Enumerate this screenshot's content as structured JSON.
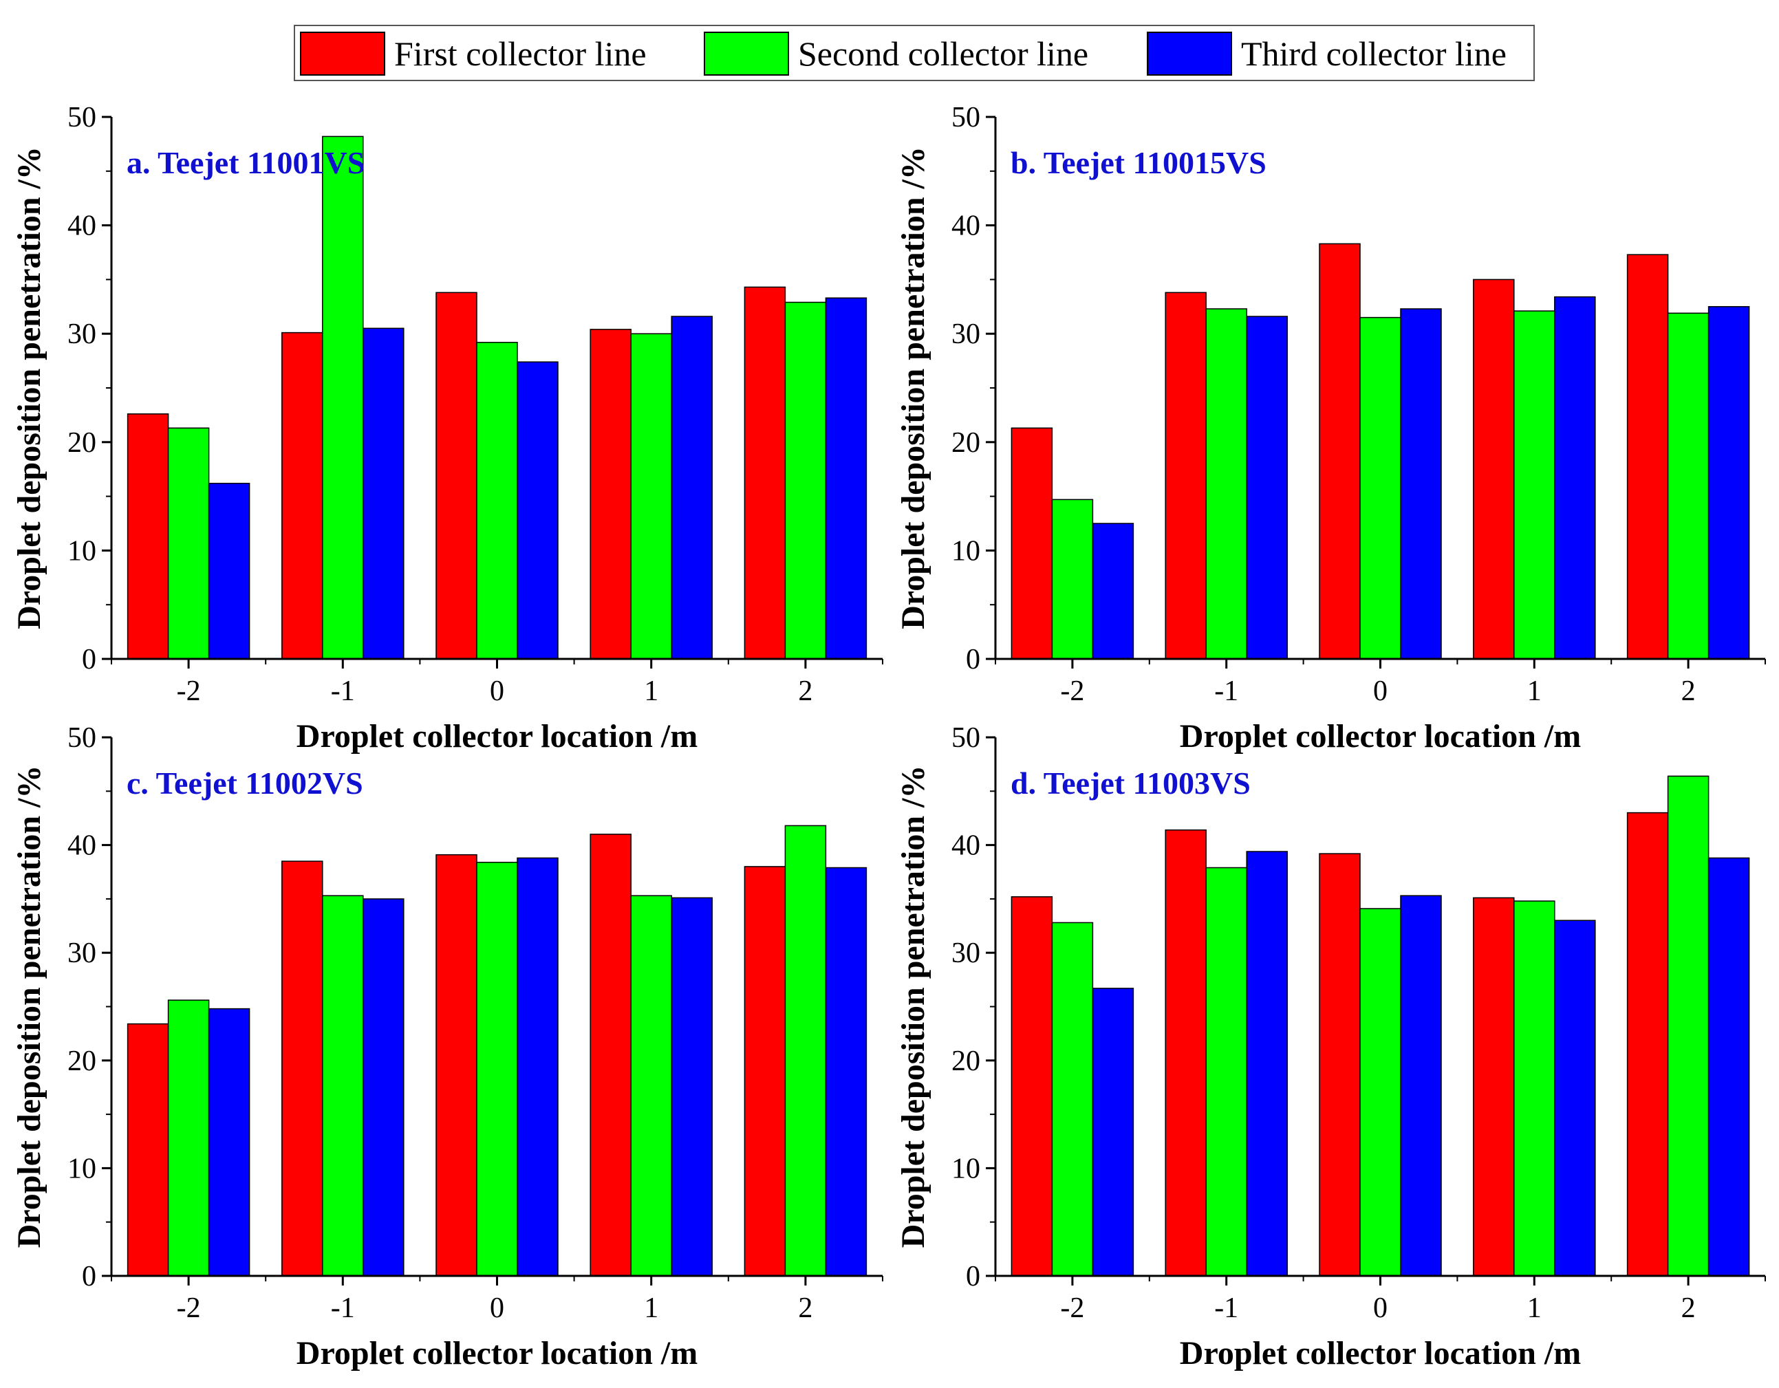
{
  "legend": {
    "items": [
      {
        "label": "First collector line",
        "color": "#ff0000"
      },
      {
        "label": "Second collector line",
        "color": "#00ff00"
      },
      {
        "label": "Third collector line",
        "color": "#0000ff"
      }
    ]
  },
  "chart_data": [
    {
      "type": "bar",
      "title": "a. Teejet 11001VS",
      "xlabel": "Droplet collector location /m",
      "ylabel": "Droplet deposition penetration /%",
      "categories": [
        "-2",
        "-1",
        "0",
        "1",
        "2"
      ],
      "ylim": [
        0,
        50
      ],
      "yticks": [
        "0",
        "10",
        "20",
        "30",
        "40",
        "50"
      ],
      "series": [
        {
          "name": "First collector line",
          "values": [
            22.6,
            30.1,
            33.8,
            30.4,
            34.3
          ]
        },
        {
          "name": "Second collector line",
          "values": [
            21.3,
            48.2,
            29.2,
            30.0,
            32.9
          ]
        },
        {
          "name": "Third collector line",
          "values": [
            16.2,
            30.5,
            27.4,
            31.6,
            33.3
          ]
        }
      ]
    },
    {
      "type": "bar",
      "title": "b. Teejet 110015VS",
      "xlabel": "Droplet collector location /m",
      "ylabel": "Droplet deposition penetration /%",
      "categories": [
        "-2",
        "-1",
        "0",
        "1",
        "2"
      ],
      "ylim": [
        0,
        50
      ],
      "yticks": [
        "0",
        "10",
        "20",
        "30",
        "40",
        "50"
      ],
      "series": [
        {
          "name": "First collector line",
          "values": [
            21.3,
            33.8,
            38.3,
            35.0,
            37.3
          ]
        },
        {
          "name": "Second collector line",
          "values": [
            14.7,
            32.3,
            31.5,
            32.1,
            31.9
          ]
        },
        {
          "name": "Third collector line",
          "values": [
            12.5,
            31.6,
            32.3,
            33.4,
            32.5
          ]
        }
      ]
    },
    {
      "type": "bar",
      "title": "c. Teejet 11002VS",
      "xlabel": "Droplet collector location /m",
      "ylabel": "Droplet deposition penetration /%",
      "categories": [
        "-2",
        "-1",
        "0",
        "1",
        "2"
      ],
      "ylim": [
        0,
        50
      ],
      "yticks": [
        "0",
        "10",
        "20",
        "30",
        "40",
        "50"
      ],
      "series": [
        {
          "name": "First collector line",
          "values": [
            23.4,
            38.5,
            39.1,
            41.0,
            38.0
          ]
        },
        {
          "name": "Second collector line",
          "values": [
            25.6,
            35.3,
            38.4,
            35.3,
            41.8
          ]
        },
        {
          "name": "Third collector line",
          "values": [
            24.8,
            35.0,
            38.8,
            35.1,
            37.9
          ]
        }
      ]
    },
    {
      "type": "bar",
      "title": "d. Teejet 11003VS",
      "xlabel": "Droplet collector location /m",
      "ylabel": "Droplet deposition penetration /%",
      "categories": [
        "-2",
        "-1",
        "0",
        "1",
        "2"
      ],
      "ylim": [
        0,
        50
      ],
      "yticks": [
        "0",
        "10",
        "20",
        "30",
        "40",
        "50"
      ],
      "series": [
        {
          "name": "First collector line",
          "values": [
            35.2,
            41.4,
            39.2,
            35.1,
            43.0
          ]
        },
        {
          "name": "Second collector line",
          "values": [
            32.8,
            37.9,
            34.1,
            34.8,
            46.4
          ]
        },
        {
          "name": "Third collector line",
          "values": [
            26.7,
            39.4,
            35.3,
            33.0,
            38.8
          ]
        }
      ]
    }
  ]
}
